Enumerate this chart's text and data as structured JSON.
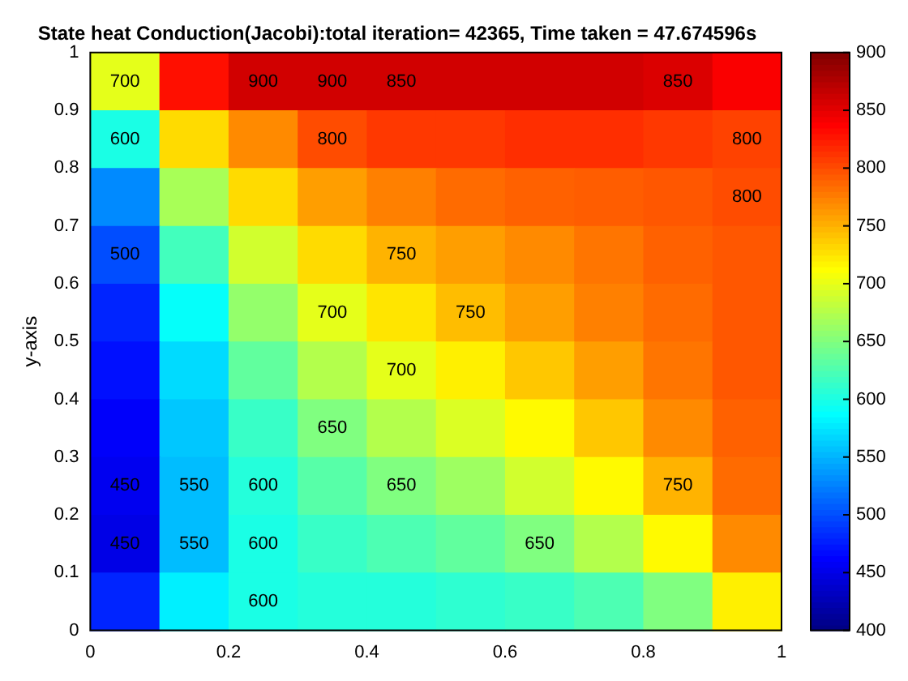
{
  "chart_data": {
    "type": "heatmap",
    "title": "State heat Conduction(Jacobi):total iteration= 42365, Time taken = 47.674596s",
    "ylabel": "y-axis",
    "xlim": [
      0,
      1
    ],
    "ylim": [
      0,
      1
    ],
    "xticks": [
      0,
      0.2,
      0.4,
      0.6,
      0.8,
      1
    ],
    "yticks": [
      0,
      0.1,
      0.2,
      0.3,
      0.4,
      0.5,
      0.6,
      0.7,
      0.8,
      0.9,
      1
    ],
    "clim": [
      400,
      900
    ],
    "cticks": [
      400,
      450,
      500,
      550,
      600,
      650,
      700,
      750,
      800,
      850,
      900
    ],
    "cells": [
      [
        700,
        830,
        860,
        860,
        860,
        860,
        860,
        860,
        855,
        840
      ],
      [
        600,
        730,
        770,
        800,
        810,
        810,
        815,
        815,
        810,
        805
      ],
      [
        530,
        670,
        730,
        760,
        775,
        785,
        790,
        792,
        795,
        800
      ],
      [
        500,
        620,
        690,
        730,
        750,
        760,
        770,
        780,
        790,
        795
      ],
      [
        480,
        590,
        660,
        700,
        725,
        745,
        760,
        775,
        785,
        795
      ],
      [
        470,
        570,
        635,
        675,
        700,
        720,
        740,
        760,
        780,
        795
      ],
      [
        460,
        560,
        615,
        650,
        675,
        695,
        715,
        740,
        770,
        790
      ],
      [
        455,
        555,
        605,
        630,
        650,
        665,
        690,
        715,
        750,
        785
      ],
      [
        450,
        555,
        600,
        615,
        625,
        635,
        650,
        675,
        715,
        770
      ],
      [
        480,
        580,
        600,
        605,
        605,
        610,
        615,
        625,
        650,
        720
      ]
    ],
    "annotations": [
      "900",
      "900",
      "800",
      "850",
      "850",
      "750",
      "800",
      "700",
      "650",
      "600",
      "550",
      "450",
      "750",
      "700",
      "650",
      "600",
      "800",
      "550",
      "500",
      "450",
      "600",
      "750",
      "700",
      "650",
      "600"
    ]
  }
}
